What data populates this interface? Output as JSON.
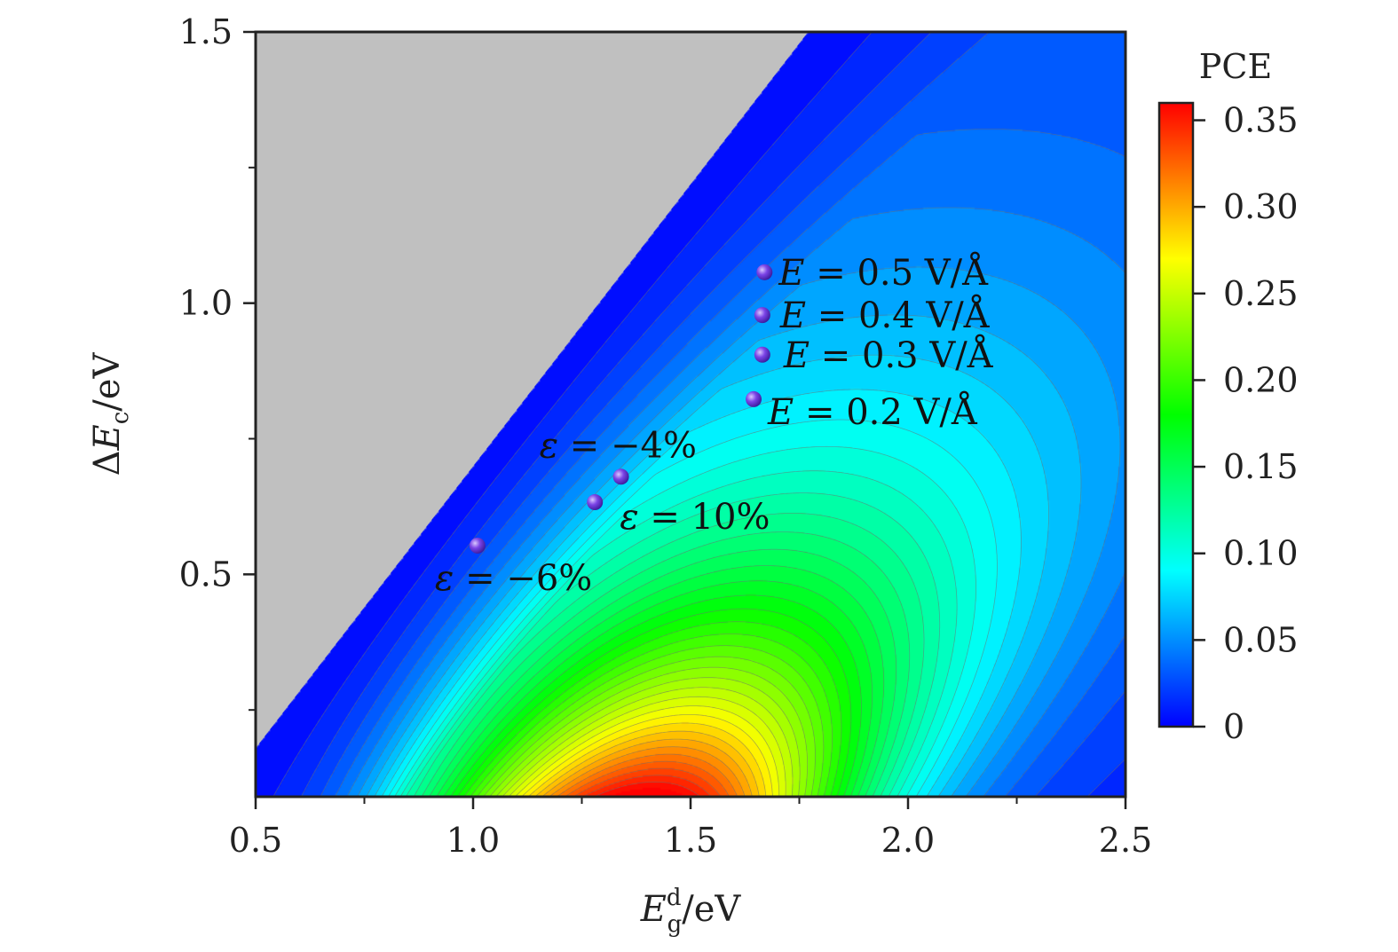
{
  "chart_data": {
    "type": "heatmap",
    "title": "",
    "xlabel": {
      "main": "E",
      "sup": "d",
      "sub": "g",
      "unit": "/eV"
    },
    "ylabel": {
      "prefix": "Δ",
      "main": "E",
      "sub": "c",
      "unit": "/eV"
    },
    "xlim": [
      0.5,
      2.5
    ],
    "ylim": [
      0.09,
      1.5
    ],
    "x_ticks": [
      "0.5",
      "1.0",
      "1.5",
      "2.0",
      "2.5"
    ],
    "x_tick_values": [
      0.5,
      1.0,
      1.5,
      2.0,
      2.5
    ],
    "y_ticks": [
      "0.5",
      "1.0",
      "1.5"
    ],
    "y_tick_values": [
      0.5,
      1.0,
      1.5
    ],
    "colorbar": {
      "title": "PCE",
      "range": [
        0,
        0.36
      ],
      "ticks": [
        "0",
        "0.05",
        "0.10",
        "0.15",
        "0.20",
        "0.25",
        "0.30",
        "0.35"
      ],
      "tick_values": [
        0,
        0.05,
        0.1,
        0.15,
        0.2,
        0.25,
        0.3,
        0.35
      ],
      "colors": [
        "#0000ff",
        "#0080ff",
        "#00ffff",
        "#00ff80",
        "#00ff00",
        "#80ff00",
        "#ffff00",
        "#ff8000",
        "#ff0000"
      ]
    },
    "excluded_region": {
      "description_color": "#c0c0c0",
      "boundary": [
        [
          0.5,
          0.18
        ],
        [
          1.77,
          1.5
        ]
      ]
    },
    "peak": {
      "x": 1.4,
      "y": 0.09,
      "pce": 0.36
    },
    "points": [
      {
        "x": 1.01,
        "y": 0.553,
        "label": "ε = −6%"
      },
      {
        "x": 1.28,
        "y": 0.633,
        "label": "ε = 10%"
      },
      {
        "x": 1.34,
        "y": 0.68,
        "label": "ε = −4%"
      },
      {
        "x": 1.645,
        "y": 0.823,
        "label": "E = 0.2 V/Å"
      },
      {
        "x": 1.665,
        "y": 0.905,
        "label": "E = 0.3 V/Å"
      },
      {
        "x": 1.665,
        "y": 0.978,
        "label": "E = 0.4 V/Å"
      },
      {
        "x": 1.67,
        "y": 1.057,
        "label": "E = 0.5 V/Å"
      }
    ],
    "marker_color": "#7b44e6"
  }
}
